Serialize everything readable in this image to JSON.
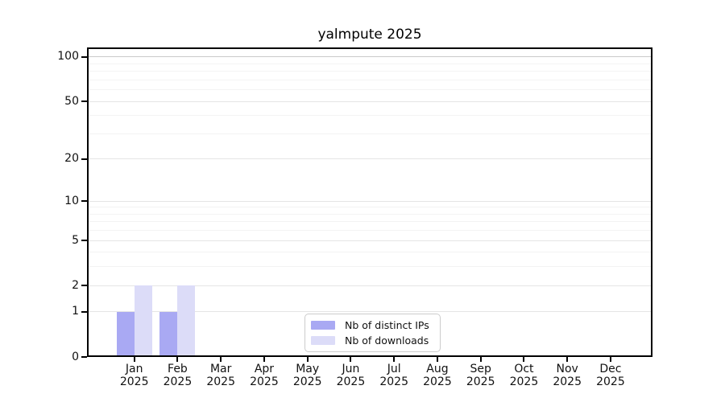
{
  "chart_data": {
    "type": "bar",
    "title": "yalmpute 2025",
    "categories": [
      "Jan",
      "Feb",
      "Mar",
      "Apr",
      "May",
      "Jun",
      "Jul",
      "Aug",
      "Sep",
      "Oct",
      "Nov",
      "Dec"
    ],
    "x_tick_year": "2025",
    "series": [
      {
        "name": "Nb of distinct IPs",
        "color": "#a9a9f3",
        "values": [
          1,
          1,
          0,
          0,
          0,
          0,
          0,
          0,
          0,
          0,
          0,
          0
        ]
      },
      {
        "name": "Nb of downloads",
        "color": "#dcdcf8",
        "values": [
          2,
          2,
          0,
          0,
          0,
          0,
          0,
          0,
          0,
          0,
          0,
          0
        ]
      }
    ],
    "yscale": "log1p",
    "ylim": [
      0,
      115
    ],
    "y_tick_values": [
      0,
      1,
      2,
      5,
      10,
      20,
      50,
      100
    ],
    "y_minor_gridlines": [
      3,
      4,
      6,
      7,
      8,
      9,
      30,
      40,
      60,
      70,
      80,
      90
    ],
    "grid": "horizontal-only",
    "legend_position": "inside-bottom-center"
  },
  "style": {
    "background": "#ffffff",
    "axis_color": "#000000",
    "text_color": "#111111",
    "grid_major_color": "#e5e5e5",
    "grid_minor_color": "#f3f3f3",
    "grid_100_color": "#c9c9c9",
    "legend_border_color": "#cccccc"
  }
}
